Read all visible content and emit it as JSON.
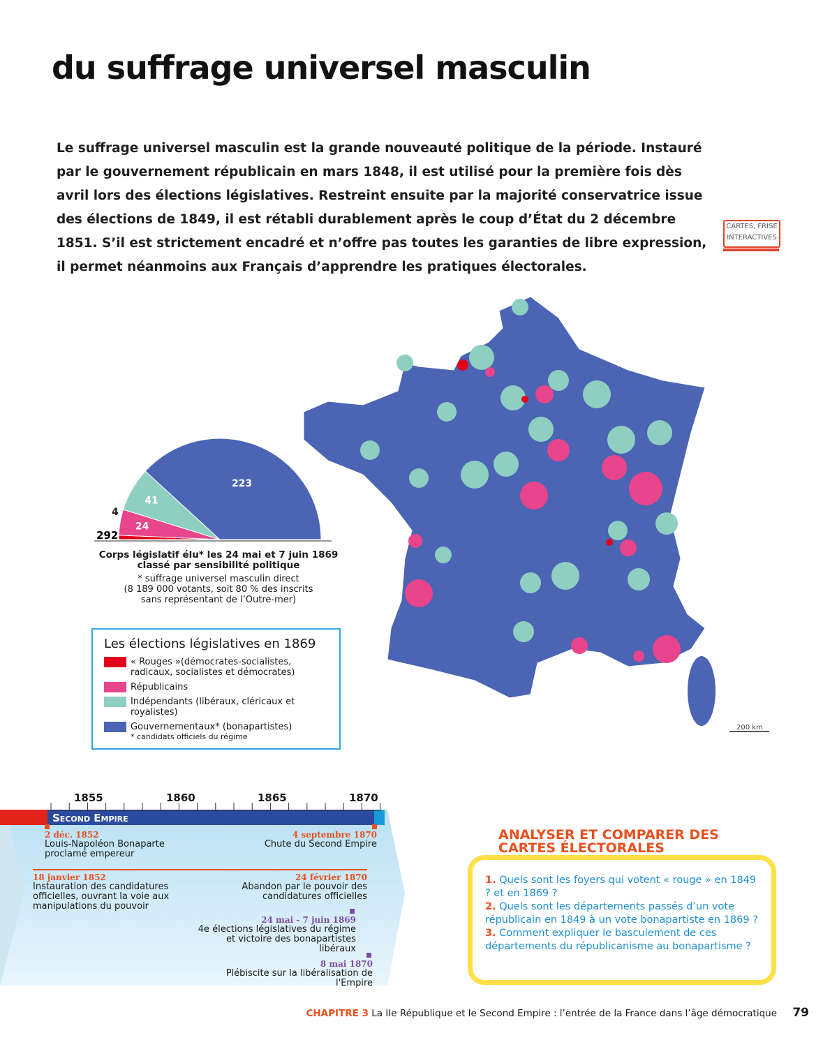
{
  "title": "du suffrage universel masculin",
  "intro": "Le suffrage universel masculin est la grande nouveauté politique de la période. Instauré par le gouvernement républicain en mars 1848, il est utilisé pour la première fois dès avril lors des élections législatives. Restreint ensuite par la majorité conservatrice issue des élections de 1849, il est rétabli durablement après le coup d’État du 2 décembre 1851. S’il est strictement encadré et n’offre pas toutes les garanties de libre expression, il permet néanmoins aux Français d’apprendre les pratiques électorales.",
  "interactive": {
    "line1": "CARTES, FRISE",
    "line2": "INTERACTIVES"
  },
  "colors": {
    "rouges": "#e2001a",
    "republicains": "#e8458c",
    "independants": "#8ecfc1",
    "gouvernementaux": "#4b64b4",
    "accent": "#e8501e",
    "border": "#2fa9dd"
  },
  "chart_data": {
    "type": "pie",
    "shape": "semicircle",
    "total": "292",
    "categories": [
      "Rouges",
      "Républicains",
      "Indépendants",
      "Gouvernementaux"
    ],
    "values": [
      4,
      24,
      41,
      223
    ],
    "title": "Corps législatif élu* les 24 mai et 7 juin 1869 classé par sensibilité politique",
    "note": [
      "* suffrage universel masculin direct",
      "(8 189 000 votants, soit 80 % des inscrits",
      "sans représentant de l’Outre-mer)"
    ]
  },
  "legend": {
    "title": "Les élections législatives en 1869",
    "items": [
      {
        "label": "« Rouges »(démocrates-socialistes, radicaux, socialistes et démocrates)",
        "color": "#e2001a"
      },
      {
        "label": "Républicains",
        "color": "#e8458c"
      },
      {
        "label": "Indépendants (libéraux, cléricaux et royalistes)",
        "color": "#8ecfc1"
      },
      {
        "label": "Gouvernementaux* (bonapartistes)",
        "color": "#4b64b4"
      }
    ],
    "footnote": "* candidats officiels du régime"
  },
  "map": {
    "scale": "200 km"
  },
  "timeline": {
    "years": [
      "1855",
      "1860",
      "1865",
      "1870"
    ],
    "period": "Second Empire",
    "events": [
      {
        "date": "2 déc. 1852",
        "text": "Louis-Napoléon Bonaparte proclamé empereur"
      },
      {
        "date": "4 septembre 1870",
        "text": "Chute du Second Empire"
      },
      {
        "date": "18 janvier 1852",
        "text": "Instauration des candidatures officielles, ouvrant la voie aux manipulations du pouvoir"
      },
      {
        "date": "24 février 1870",
        "text": "Abandon par le pouvoir des candidatures officielles"
      },
      {
        "date": "24 mai - 7 juin 1869",
        "text": "4e élections législatives du régime et victoire des bonapartistes libéraux"
      },
      {
        "date": "8 mai 1870",
        "text": "Plébiscite sur la libéralisation de l'Empire"
      }
    ]
  },
  "questions": {
    "title": "ANALYSER ET COMPARER DES CARTES ÉLECTORALES",
    "items": [
      {
        "n": "1.",
        "text": "Quels sont les foyers qui votent « rouge » en 1849 ? et en 1869 ?"
      },
      {
        "n": "2.",
        "text": "Quels sont les départements passés d’un vote républicain en 1849 à un vote bonapartiste en 1869 ?"
      },
      {
        "n": "3.",
        "text": "Comment expliquer le basculement de ces départements du républicanisme au bonapartisme ?"
      }
    ]
  },
  "footer": {
    "chapter": "CHAPITRE 3",
    "text": "La IIe République et le Second Empire : l’entrée de la France dans l’âge démocratique",
    "page": "79"
  }
}
